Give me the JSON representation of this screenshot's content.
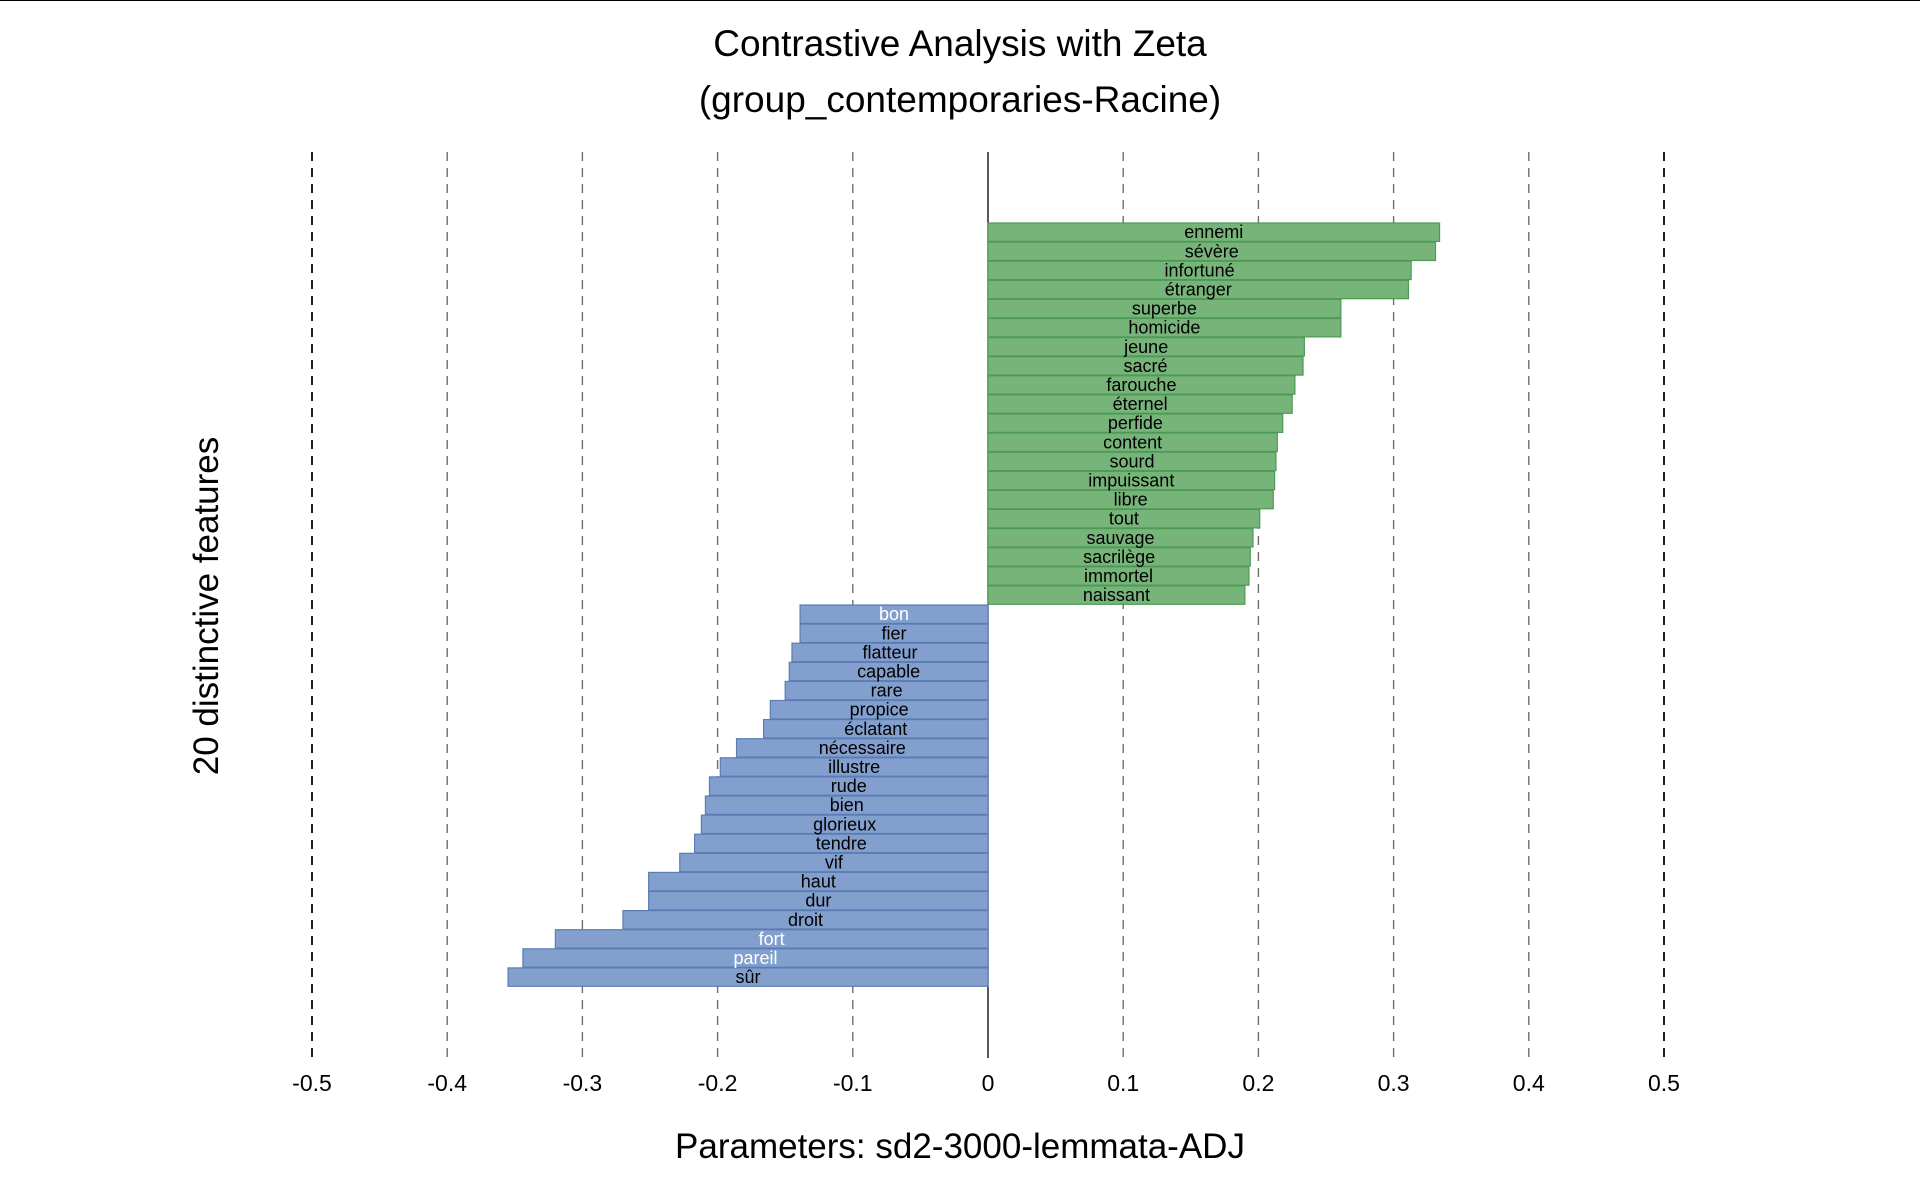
{
  "chart_data": {
    "type": "bar",
    "orientation": "horizontal",
    "title": [
      "Contrastive Analysis with Zeta",
      "(group_contemporaries-Racine)"
    ],
    "xlabel": "Parameters: sd2-3000-lemmata-ADJ",
    "ylabel": "20 distinctive features",
    "xlim": [
      -0.5,
      0.5
    ],
    "xticks": [
      -0.5,
      -0.4,
      -0.3,
      -0.2,
      -0.1,
      0,
      0.1,
      0.2,
      0.3,
      0.4,
      0.5
    ],
    "xtick_labels": [
      "-0.5",
      "-0.4",
      "-0.3",
      "-0.2",
      "-0.1",
      "0",
      "0.1",
      "0.2",
      "0.3",
      "0.4",
      "0.5"
    ],
    "grid": "vertical dashed",
    "colors": {
      "positive_fill": "#77b47a",
      "positive_edge": "#4e9a55",
      "negative_fill": "#829fcd",
      "negative_edge": "#5a7db5"
    },
    "series": [
      {
        "name": "Racine",
        "color": "#77b47a",
        "categories": [
          "ennemi",
          "sévère",
          "infortuné",
          "étranger",
          "superbe",
          "homicide",
          "jeune",
          "sacré",
          "farouche",
          "éternel",
          "perfide",
          "content",
          "sourd",
          "impuissant",
          "libre",
          "tout",
          "sauvage",
          "sacrilège",
          "immortel",
          "naissant"
        ],
        "values": [
          0.334,
          0.331,
          0.313,
          0.311,
          0.261,
          0.261,
          0.234,
          0.233,
          0.227,
          0.225,
          0.218,
          0.214,
          0.213,
          0.212,
          0.211,
          0.201,
          0.196,
          0.194,
          0.193,
          0.19
        ]
      },
      {
        "name": "group_contemporaries",
        "color": "#829fcd",
        "categories": [
          "bon",
          "fier",
          "flatteur",
          "capable",
          "rare",
          "propice",
          "éclatant",
          "nécessaire",
          "illustre",
          "rude",
          "bien",
          "glorieux",
          "tendre",
          "vif",
          "haut",
          "dur",
          "droit",
          "fort",
          "pareil",
          "sûr"
        ],
        "values": [
          -0.139,
          -0.139,
          -0.145,
          -0.147,
          -0.15,
          -0.161,
          -0.166,
          -0.186,
          -0.198,
          -0.206,
          -0.209,
          -0.212,
          -0.217,
          -0.228,
          -0.251,
          -0.251,
          -0.27,
          -0.32,
          -0.344,
          -0.355
        ],
        "light_label_categories": [
          "bon",
          "fort",
          "pareil"
        ]
      }
    ]
  }
}
